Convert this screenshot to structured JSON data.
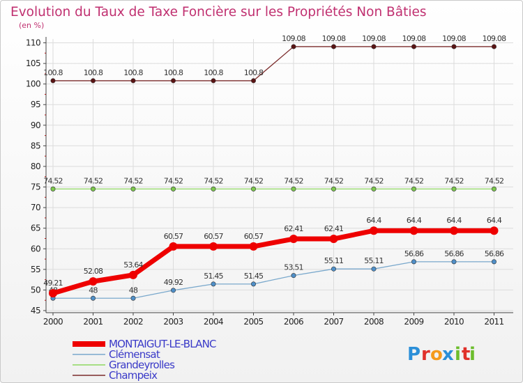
{
  "chart_data": {
    "type": "line",
    "title": "Evolution du Taux de Taxe Foncière sur les Propriétés Non Bâties",
    "ylabel": "(en %)",
    "xlabel": "",
    "ylim": [
      45,
      110
    ],
    "yticks": [
      "45",
      "50",
      "55",
      "60",
      "65",
      "70",
      "75",
      "80",
      "85",
      "90",
      "95",
      "100",
      "105",
      "110"
    ],
    "categories": [
      "2000",
      "2001",
      "2002",
      "2003",
      "2004",
      "2005",
      "2006",
      "2007",
      "2008",
      "2009",
      "2010",
      "2011"
    ],
    "series": [
      {
        "name": "Champeix",
        "color": "#7a2a2a",
        "marker_color": "#5a1414",
        "style": "thin",
        "values": [
          100.8,
          100.8,
          100.8,
          100.8,
          100.8,
          100.8,
          109.08,
          109.08,
          109.08,
          109.08,
          109.08,
          109.08
        ],
        "labels": [
          "100.8",
          "100.8",
          "100.8",
          "100.8",
          "100.8",
          "100.8",
          "109.08",
          "109.08",
          "109.08",
          "109.08",
          "109.08",
          "109.08"
        ]
      },
      {
        "name": "Grandeyrolles",
        "color": "#8ed860",
        "marker_color": "#7cc84c",
        "style": "thin",
        "values": [
          74.52,
          74.52,
          74.52,
          74.52,
          74.52,
          74.52,
          74.52,
          74.52,
          74.52,
          74.52,
          74.52,
          74.52
        ],
        "labels": [
          "74.52",
          "74.52",
          "74.52",
          "74.52",
          "74.52",
          "74.52",
          "74.52",
          "74.52",
          "74.52",
          "74.52",
          "74.52",
          "74.52"
        ]
      },
      {
        "name": "Clémensat",
        "color": "#79a8cc",
        "marker_color": "#4f8fc8",
        "style": "thin",
        "values": [
          48,
          48,
          48,
          49.92,
          51.45,
          51.45,
          53.51,
          55.11,
          55.11,
          56.86,
          56.86,
          56.86
        ],
        "labels": [
          "48",
          "48",
          "48",
          "49.92",
          "51.45",
          "51.45",
          "53.51",
          "55.11",
          "55.11",
          "56.86",
          "56.86",
          "56.86"
        ]
      },
      {
        "name": "MONTAIGUT-LE-BLANC",
        "color": "#ee0000",
        "marker_color": "#ee0000",
        "style": "thick",
        "values": [
          49.21,
          52.08,
          53.64,
          60.57,
          60.57,
          60.57,
          62.41,
          62.41,
          64.4,
          64.4,
          64.4,
          64.4
        ],
        "labels": [
          "49.21",
          "52.08",
          "53.64",
          "60.57",
          "60.57",
          "60.57",
          "62.41",
          "62.41",
          "64.4",
          "64.4",
          "64.4",
          "64.4"
        ]
      }
    ],
    "legend": [
      "MONTAIGUT-LE-BLANC",
      "Clémensat",
      "Grandeyrolles",
      "Champeix"
    ]
  },
  "logo": {
    "letters": [
      "P",
      "r",
      "o",
      "x",
      "i",
      "t",
      "i"
    ],
    "colors": [
      "#2b8fd8",
      "#e0302a",
      "#f59a1c",
      "#2b8fd8",
      "#6cbd2c",
      "#e0302a",
      "#6cbd2c"
    ]
  }
}
